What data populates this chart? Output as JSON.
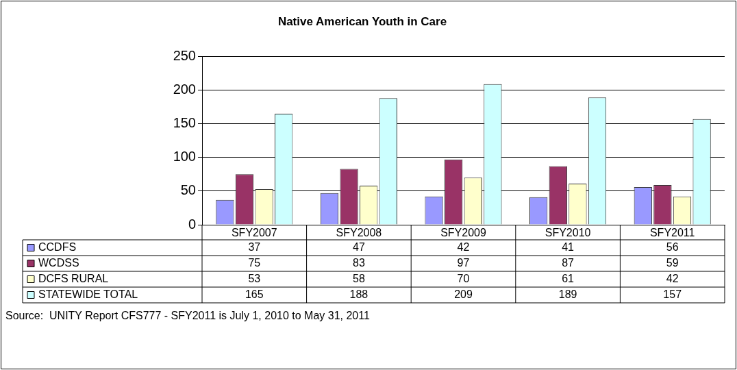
{
  "chart_data": {
    "type": "bar",
    "title": "Native American Youth in Care",
    "categories": [
      "SFY2007",
      "SFY2008",
      "SFY2009",
      "SFY2010",
      "SFY2011"
    ],
    "series": [
      {
        "name": "CCDFS",
        "color": "#9999ff",
        "values": [
          37,
          47,
          42,
          41,
          56
        ]
      },
      {
        "name": "WCDSS",
        "color": "#993366",
        "values": [
          75,
          83,
          97,
          87,
          59
        ]
      },
      {
        "name": "DCFS RURAL",
        "color": "#ffffcc",
        "values": [
          53,
          58,
          70,
          61,
          42
        ]
      },
      {
        "name": "STATEWIDE TOTAL",
        "color": "#ccffff",
        "values": [
          165,
          188,
          209,
          189,
          157
        ]
      }
    ],
    "ylim": [
      0,
      250
    ],
    "yticks": [
      0,
      50,
      100,
      150,
      200,
      250
    ],
    "grid": "y",
    "data_labels": true,
    "legend": "bottom",
    "annotations": [
      "Source:  UNITY Report CFS777 - SFY2011 is July 1, 2010 to May 31, 2011"
    ]
  }
}
